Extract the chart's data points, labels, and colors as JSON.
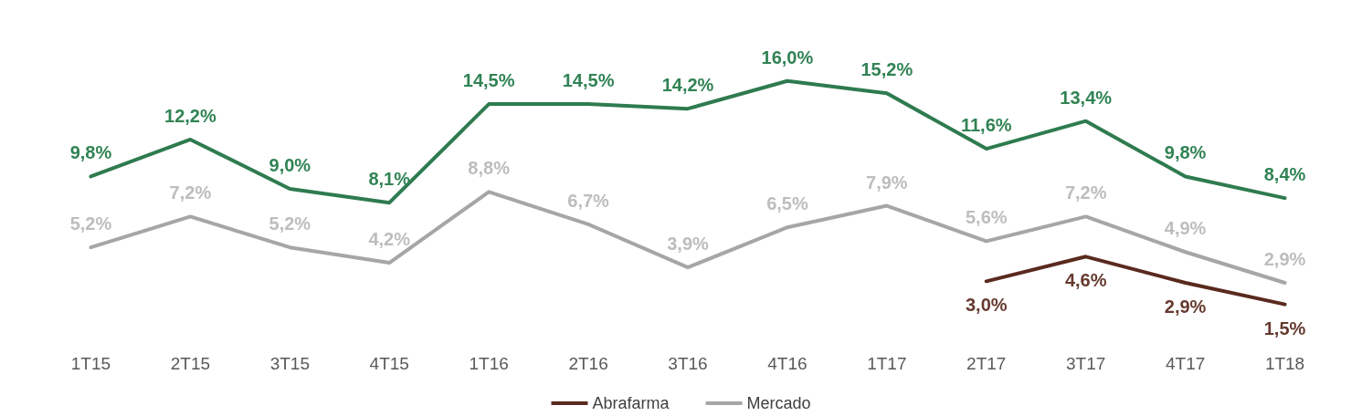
{
  "chart_data": {
    "type": "line",
    "categories": [
      "1T15",
      "2T15",
      "3T15",
      "4T15",
      "1T16",
      "2T16",
      "3T16",
      "4T16",
      "1T17",
      "2T17",
      "3T17",
      "4T17",
      "1T18"
    ],
    "series": [
      {
        "color": "#2e7b4f",
        "values": [
          9.8,
          12.2,
          9.0,
          8.1,
          14.5,
          14.5,
          14.2,
          16.0,
          15.2,
          11.6,
          13.4,
          9.8,
          8.4
        ],
        "value_labels": [
          "9,8%",
          "12,2%",
          "9,0%",
          "8,1%",
          "14,5%",
          "14,5%",
          "14,2%",
          "16,0%",
          "15,2%",
          "11,6%",
          "13,4%",
          "9,8%",
          "8,4%"
        ]
      },
      {
        "name": "Abrafarma",
        "color": "#5a2a1e",
        "values": [
          null,
          null,
          null,
          null,
          null,
          null,
          null,
          null,
          null,
          3.0,
          4.6,
          2.9,
          1.5
        ],
        "value_labels": [
          null,
          null,
          null,
          null,
          null,
          null,
          null,
          null,
          null,
          "3,0%",
          "4,6%",
          "2,9%",
          "1,5%"
        ]
      },
      {
        "name": "Mercado",
        "color": "#a6a6a6",
        "values": [
          5.2,
          7.2,
          5.2,
          4.2,
          8.8,
          6.7,
          3.9,
          6.5,
          7.9,
          5.6,
          7.2,
          4.9,
          2.9
        ],
        "value_labels": [
          "5,2%",
          "7,2%",
          "5,2%",
          "4,2%",
          "8,8%",
          "6,7%",
          "3,9%",
          "6,5%",
          "7,9%",
          "5,6%",
          "7,2%",
          "4,9%",
          "2,9%"
        ]
      }
    ],
    "legend": "bottom",
    "marker": "none",
    "line_style": "solid"
  }
}
